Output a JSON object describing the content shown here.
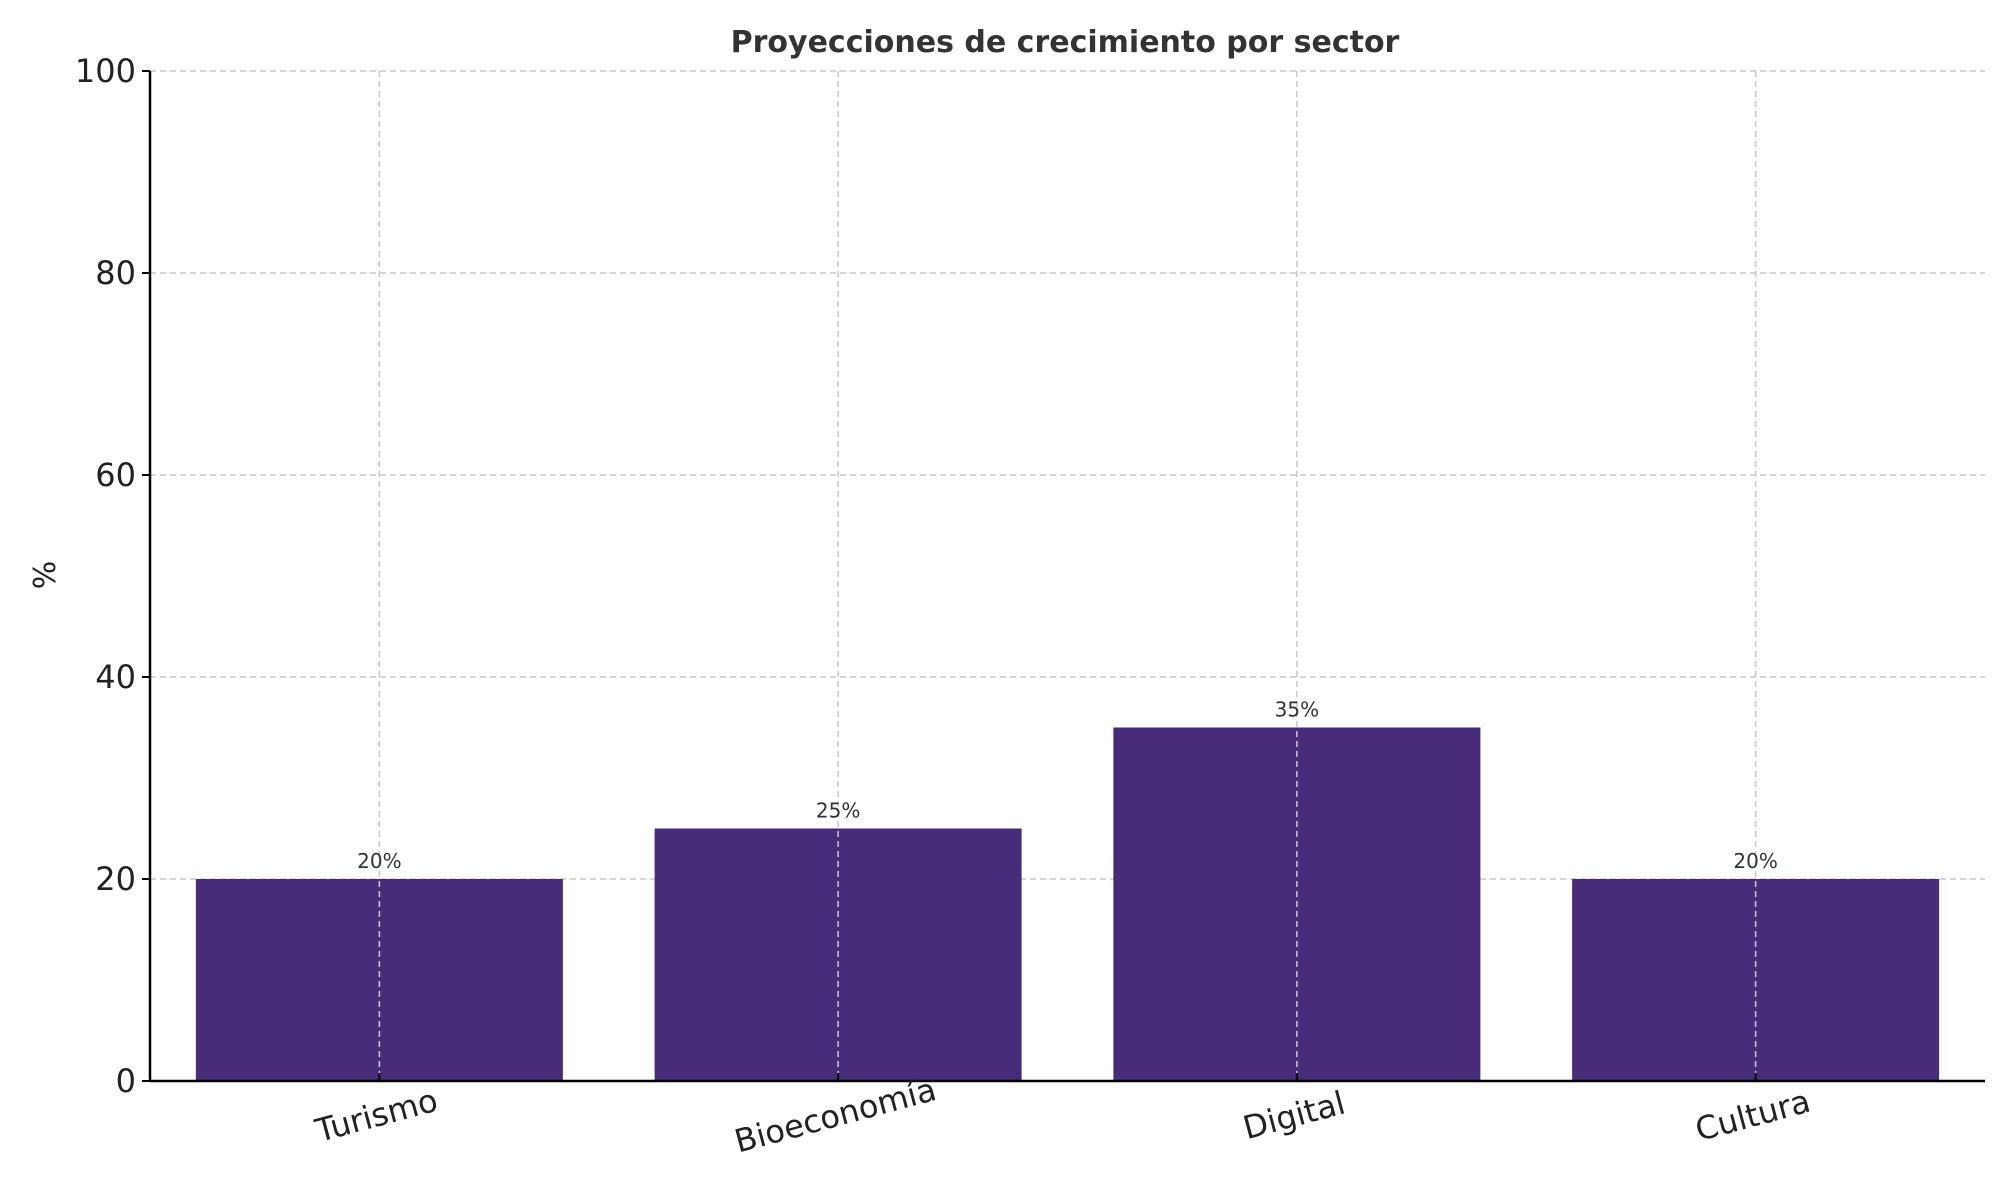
{
  "chart_data": {
    "type": "bar",
    "title": "Proyecciones de crecimiento por sector",
    "xlabel": "",
    "ylabel": "%",
    "categories": [
      "Turismo",
      "Bioeconomía",
      "Digital",
      "Cultura"
    ],
    "values": [
      20,
      25,
      35,
      20
    ],
    "value_labels": [
      "20%",
      "25%",
      "35%",
      "20%"
    ],
    "ylim": [
      0,
      100
    ],
    "yticks": [
      0,
      20,
      40,
      60,
      80,
      100
    ],
    "ytick_labels": [
      "0",
      "20",
      "40",
      "60",
      "80",
      "100"
    ],
    "grid": true,
    "colors": {
      "bar": "#472c7a",
      "grid": "#c8c8c8",
      "axis": "#000000",
      "text": "#333333"
    }
  }
}
